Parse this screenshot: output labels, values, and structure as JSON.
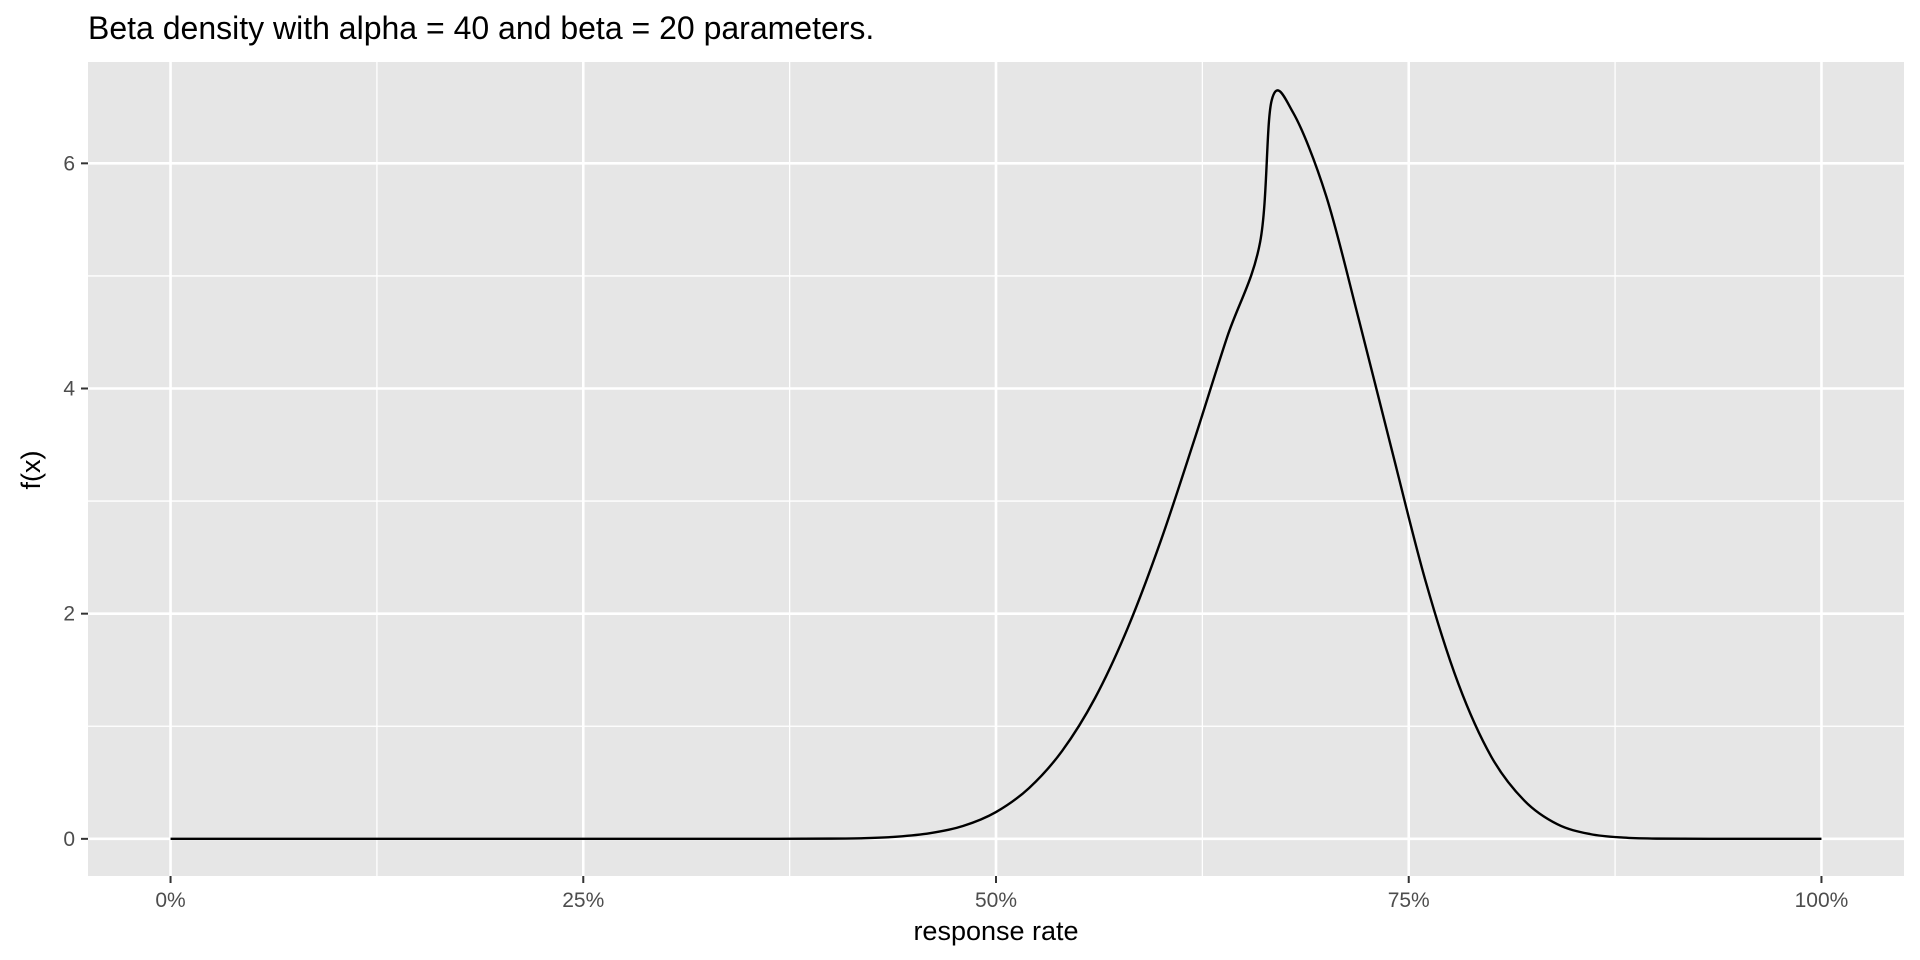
{
  "chart_data": {
    "type": "line",
    "title": "Beta density with alpha = 40 and beta = 20 parameters.",
    "xlabel": "response rate",
    "ylabel": "f(x)",
    "xlim": [
      -0.05,
      1.05
    ],
    "ylim": [
      -0.33,
      6.9
    ],
    "x_ticks": [
      {
        "value": 0,
        "label": "0%"
      },
      {
        "value": 0.25,
        "label": "25%"
      },
      {
        "value": 0.5,
        "label": "50%"
      },
      {
        "value": 0.75,
        "label": "75%"
      },
      {
        "value": 1,
        "label": "100%"
      }
    ],
    "y_ticks": [
      {
        "value": 0,
        "label": "0"
      },
      {
        "value": 2,
        "label": "2"
      },
      {
        "value": 4,
        "label": "4"
      },
      {
        "value": 6,
        "label": "6"
      }
    ],
    "x_minor_grid": [
      0.125,
      0.375,
      0.625,
      0.875
    ],
    "y_minor_grid": [
      1,
      3,
      5
    ],
    "grid": true,
    "legend": "none",
    "colors": {
      "panel": "#e6e6e6",
      "grid": "#ffffff",
      "line": "#000000",
      "tick_text": "#4d4d4d",
      "tick_mark": "#333333"
    },
    "series": [
      {
        "x": [
          0,
          0.05,
          0.1,
          0.15,
          0.2,
          0.25,
          0.3,
          0.35,
          0.4,
          0.42,
          0.44,
          0.46,
          0.48,
          0.5,
          0.52,
          0.54,
          0.56,
          0.58,
          0.6,
          0.62,
          0.64,
          0.66,
          0.667,
          0.68,
          0.7,
          0.72,
          0.74,
          0.76,
          0.78,
          0.8,
          0.82,
          0.84,
          0.86,
          0.88,
          0.9,
          0.95,
          1
        ],
        "y": [
          0,
          0,
          0,
          0,
          0,
          0,
          0,
          0,
          0.002,
          0.006,
          0.019,
          0.05,
          0.114,
          0.238,
          0.451,
          0.78,
          1.251,
          1.88,
          2.655,
          3.538,
          4.456,
          5.302,
          6.56,
          6.45,
          5.71,
          4.6,
          3.44,
          2.3,
          1.38,
          0.73,
          0.34,
          0.13,
          0.042,
          0.011,
          0.002,
          0,
          0
        ]
      }
    ]
  }
}
